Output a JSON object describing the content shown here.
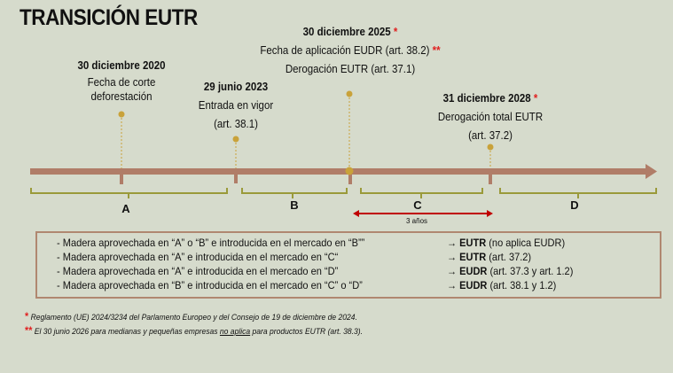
{
  "title": "TRANSICIÓN EUTR",
  "events": [
    {
      "date": "30 diciembre 2020",
      "star": "",
      "lines": [
        "Fecha de corte",
        "deforestación"
      ]
    },
    {
      "date": "29 junio 2023",
      "star": "",
      "lines": [
        "Entrada en vigor",
        "(art. 38.1)"
      ]
    },
    {
      "date": "30 diciembre 2025",
      "star": "*",
      "lines": [
        "Fecha de aplicación EUDR (art. 38.2)",
        "Derogación EUTR (art. 37.1)"
      ],
      "line1_star": "**"
    },
    {
      "date": "31 diciembre 2028",
      "star": "*",
      "lines": [
        "Derogación total EUTR",
        "(art. 37.2)"
      ]
    }
  ],
  "periods": [
    "A",
    "B",
    "C",
    "D"
  ],
  "span_label": "3 años",
  "rules": [
    {
      "text": "- Madera aprovechada en “A” o “B” e introducida en el mercado en “B””",
      "arrow": "→",
      "reg": "EUTR",
      "ref": "(no aplica EUDR)"
    },
    {
      "text": "- Madera aprovechada en “A” e introducida en el mercado en “C“",
      "arrow": "→",
      "reg": "EUTR",
      "ref": "(art. 37.2)"
    },
    {
      "text": "- Madera aprovechada en “A” e introducida en el mercado en “D”",
      "arrow": "→",
      "reg": "EUDR",
      "ref": "(art. 37.3 y art. 1.2)"
    },
    {
      "text": "- Madera aprovechada en “B” e introducida en el mercado en “C” o “D”",
      "arrow": "→",
      "reg": "EUDR",
      "ref": "(art. 38.1 y 1.2)"
    }
  ],
  "footnotes": [
    {
      "mark": "*",
      "text": "Reglamento (UE) 2024/3234 del Parlamento Europeo y del Consejo de 19 de diciembre de 2024."
    },
    {
      "mark": "**",
      "pre": "El 30 junio 2026 para medianas y pequeñas empresas ",
      "underlined": "no aplica",
      "post": " para productos EUTR (art. 38.3)."
    }
  ],
  "colors": {
    "background": "#d6dbcc",
    "timeline": "#b07d68",
    "marker": "#c9a23a",
    "bracket": "#9a9a3a",
    "span_arrow": "#c00000",
    "star": "#e02020"
  }
}
